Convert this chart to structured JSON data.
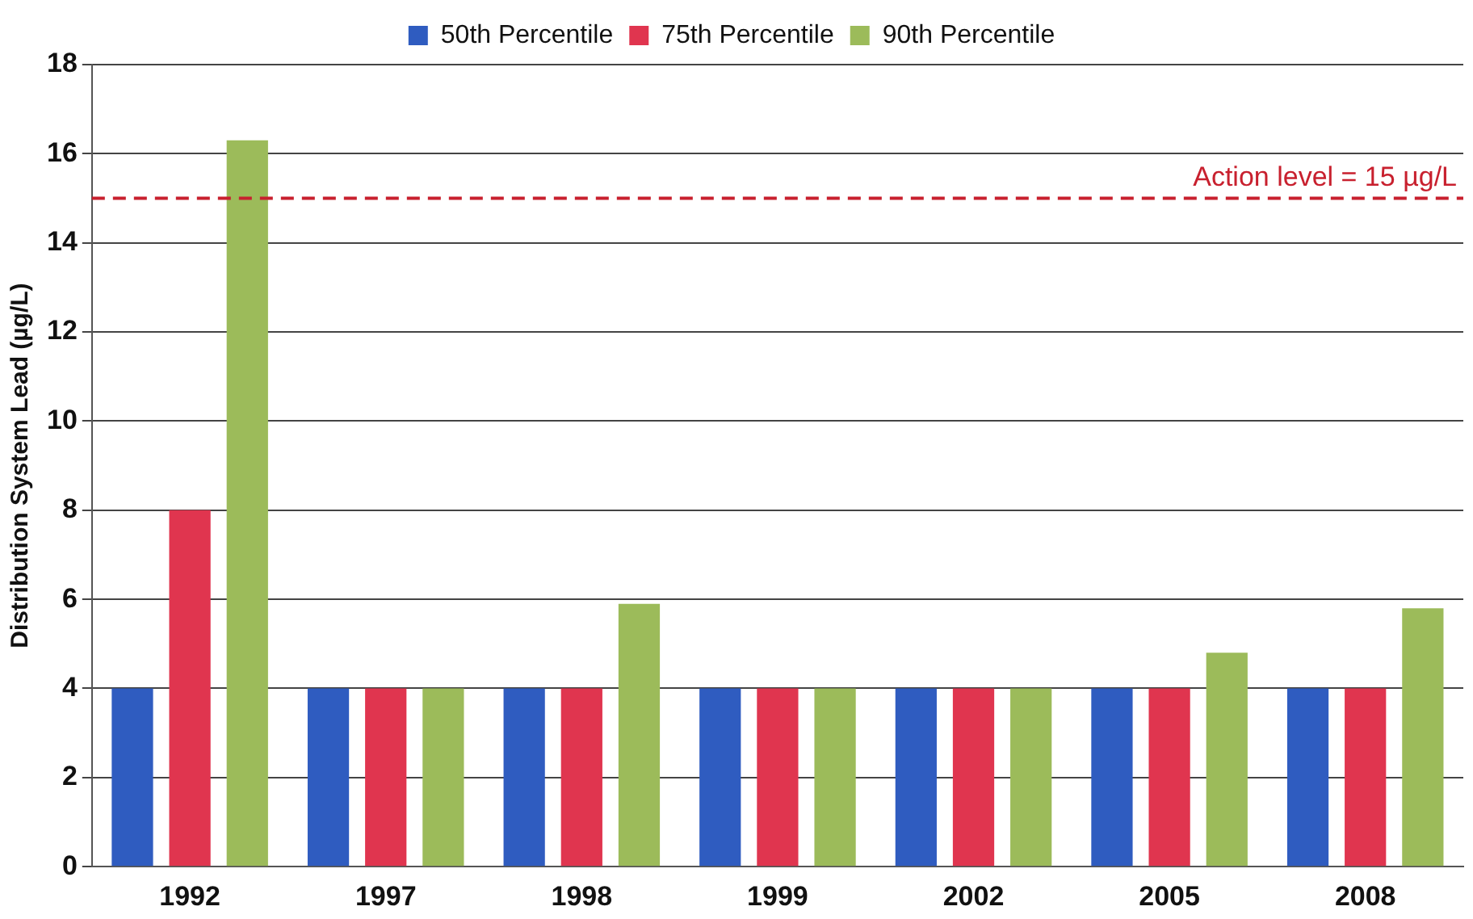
{
  "chart_data": {
    "type": "bar",
    "ylabel": "Distribution System Lead (µg/L)",
    "categories": [
      "1992",
      "1997",
      "1998",
      "1999",
      "2002",
      "2005",
      "2008"
    ],
    "series": [
      {
        "name": "50th Percentile",
        "color": "#2f5cc0",
        "values": [
          4,
          4,
          4,
          4,
          4,
          4,
          4
        ]
      },
      {
        "name": "75th Percentile",
        "color": "#e0354f",
        "values": [
          8,
          4,
          4,
          4,
          4,
          4,
          4
        ]
      },
      {
        "name": "90th Percentile",
        "color": "#9cbb5a",
        "values": [
          16.3,
          4,
          5.9,
          4,
          4,
          4.8,
          5.8
        ]
      }
    ],
    "ylim": [
      0,
      18
    ],
    "yticks": [
      0,
      2,
      4,
      6,
      8,
      10,
      12,
      14,
      16,
      18
    ],
    "grid": "y",
    "legend": "top",
    "ref_lines": [
      {
        "axis": "y",
        "value": 15,
        "label": "Action level = 15 µg/L",
        "color": "#c8202e",
        "line_style": "dashed"
      }
    ]
  }
}
